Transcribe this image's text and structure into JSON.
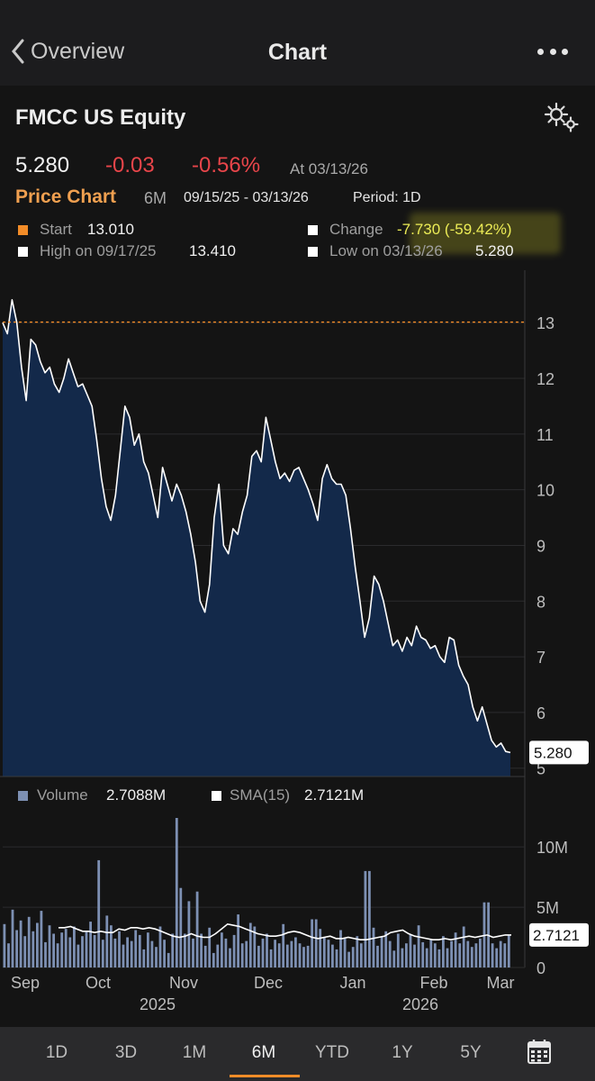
{
  "nav": {
    "back_label": "Overview",
    "title": "Chart"
  },
  "security": {
    "name": "FMCC US Equity"
  },
  "quote": {
    "last": "5.280",
    "change": "-0.03",
    "change_pct": "-0.56%",
    "as_of": "At 03/13/26"
  },
  "chart_header": {
    "label": "Price Chart",
    "range": "6M",
    "dates": "09/15/25 - 03/13/26",
    "period": "Period: 1D"
  },
  "stats": {
    "start_label": "Start",
    "start_value": "13.010",
    "change_label": "Change",
    "change_value": "-7.730 (-59.42%)",
    "high_label": "High on 09/17/25",
    "high_value": "13.410",
    "low_label": "Low on 03/13/26",
    "low_value": "5.280"
  },
  "volume_legend": {
    "volume_label": "Volume",
    "volume_value": "2.7088M",
    "sma_label": "SMA(15)",
    "sma_value": "2.7121M"
  },
  "colors": {
    "accent": "#f28c28",
    "negative": "#e8454a",
    "area_fill": "#13294a",
    "line": "#ffffff",
    "volume_bar": "#7d90b3",
    "highlight": "#ecec56"
  },
  "tabs": [
    {
      "label": "1D"
    },
    {
      "label": "3D"
    },
    {
      "label": "1M"
    },
    {
      "label": "6M",
      "active": true
    },
    {
      "label": "YTD"
    },
    {
      "label": "1Y"
    },
    {
      "label": "5Y"
    }
  ],
  "icons": {
    "back": "chevron-left-icon",
    "more": "more-dots-icon",
    "settings": "gears-icon",
    "calendar": "calendar-icon"
  },
  "chart_data": [
    {
      "type": "area",
      "series": [
        {
          "values": [
            13.0,
            12.8,
            13.41,
            13.0,
            12.2,
            11.6,
            12.7,
            12.6,
            12.3,
            12.1,
            12.2,
            11.9,
            11.75,
            12.0,
            12.35,
            12.1,
            11.85,
            11.9,
            11.7,
            11.5,
            10.9,
            10.2,
            9.7,
            9.45,
            9.9,
            10.7,
            11.5,
            11.3,
            10.8,
            11.0,
            10.5,
            10.3,
            9.9,
            9.5,
            10.4,
            10.1,
            9.8,
            10.1,
            9.9,
            9.6,
            9.2,
            8.7,
            8.0,
            7.8,
            8.3,
            9.5,
            10.1,
            9.0,
            8.85,
            9.3,
            9.2,
            9.6,
            9.9,
            10.6,
            10.7,
            10.5,
            11.3,
            10.9,
            10.5,
            10.2,
            10.3,
            10.15,
            10.35,
            10.4,
            10.2,
            10.0,
            9.75,
            9.45,
            10.2,
            10.45,
            10.2,
            10.1,
            10.1,
            9.9,
            9.3,
            8.6,
            8.0,
            7.35,
            7.7,
            8.45,
            8.3,
            8.0,
            7.6,
            7.2,
            7.3,
            7.1,
            7.35,
            7.2,
            7.55,
            7.35,
            7.3,
            7.15,
            7.2,
            7.0,
            6.9,
            7.35,
            7.3,
            6.85,
            6.65,
            6.5,
            6.1,
            5.85,
            6.1,
            5.8,
            5.5,
            5.38,
            5.45,
            5.3,
            5.28
          ]
        }
      ],
      "x_labels": [
        "Sep",
        "Oct",
        "Nov",
        "Dec",
        "Jan",
        "Feb",
        "Mar"
      ],
      "year_labels": [
        "2025",
        "2026"
      ],
      "y_ticks": [
        5,
        6,
        7,
        8,
        9,
        10,
        11,
        12,
        13
      ],
      "ylim": [
        4.85,
        13.65
      ],
      "reference_line": 13.01,
      "last_label": "5.280"
    },
    {
      "type": "bar",
      "series": [
        {
          "name": "Volume",
          "values": [
            3.6,
            2.0,
            4.8,
            3.1,
            3.9,
            2.6,
            4.2,
            3.0,
            3.7,
            4.7,
            2.1,
            3.5,
            2.8,
            2.0,
            2.9,
            3.2,
            2.5,
            3.4,
            1.9,
            2.6,
            3.0,
            3.8,
            2.7,
            8.9,
            2.3,
            4.3,
            3.5,
            2.4,
            3.0,
            1.9,
            2.5,
            2.2,
            3.1,
            2.7,
            1.5,
            2.9,
            2.2,
            1.7,
            3.4,
            2.3,
            1.2,
            2.8,
            12.4,
            6.6,
            2.8,
            5.5,
            2.4,
            6.3,
            2.8,
            1.8,
            3.3,
            1.2,
            1.9,
            2.9,
            2.4,
            1.6,
            2.7,
            4.4,
            2.0,
            2.2,
            3.7,
            3.4,
            1.8,
            2.4,
            2.8,
            1.5,
            2.3,
            2.0,
            3.6,
            1.9,
            2.2,
            2.5,
            2.0,
            1.7,
            1.8,
            4.0,
            4.0,
            3.2,
            2.5,
            2.3,
            1.9,
            1.5,
            3.1,
            2.4,
            1.3,
            1.7,
            2.6,
            2.0,
            8.0,
            8.0,
            3.3,
            1.8,
            2.5,
            3.0,
            2.2,
            1.4,
            2.8,
            1.6,
            2.0,
            2.7,
            1.9,
            3.5,
            2.1,
            1.6,
            2.3,
            2.0,
            1.5,
            2.6,
            1.6,
            2.2,
            2.9,
            2.0,
            3.4,
            2.2,
            1.7,
            2.0,
            2.4,
            5.4,
            5.4,
            2.0,
            1.6,
            2.2,
            2.0,
            2.7
          ]
        },
        {
          "name": "SMA(15)",
          "values": [
            3.3,
            3.3,
            3.4,
            3.2,
            3.0,
            3.0,
            2.9,
            3.0,
            2.9,
            2.9,
            3.2,
            3.1,
            3.3,
            3.3,
            3.2,
            3.3,
            3.2,
            3.0,
            2.8,
            2.6,
            2.5,
            2.6,
            2.8,
            2.6,
            2.5,
            2.5,
            2.8,
            3.2,
            3.6,
            3.5,
            3.4,
            3.2,
            3.0,
            2.8,
            2.7,
            2.6,
            2.6,
            2.7,
            2.9,
            3.0,
            2.9,
            2.7,
            2.5,
            2.4,
            2.5,
            2.6,
            2.4,
            2.4,
            2.5,
            2.4,
            2.3,
            2.3,
            2.4,
            2.5,
            2.6,
            2.9,
            3.0,
            3.1,
            2.8,
            2.6,
            2.5,
            2.4,
            2.3,
            2.3,
            2.4,
            2.3,
            2.4,
            2.5,
            2.6,
            2.5,
            2.6,
            2.7,
            2.5,
            2.6,
            2.7,
            2.7
          ]
        }
      ],
      "y_ticks": [
        0,
        5,
        10
      ],
      "y_tick_labels": [
        "0",
        "5M",
        "10M"
      ],
      "ylim": [
        0,
        13
      ],
      "last_label": "2.7121"
    }
  ]
}
